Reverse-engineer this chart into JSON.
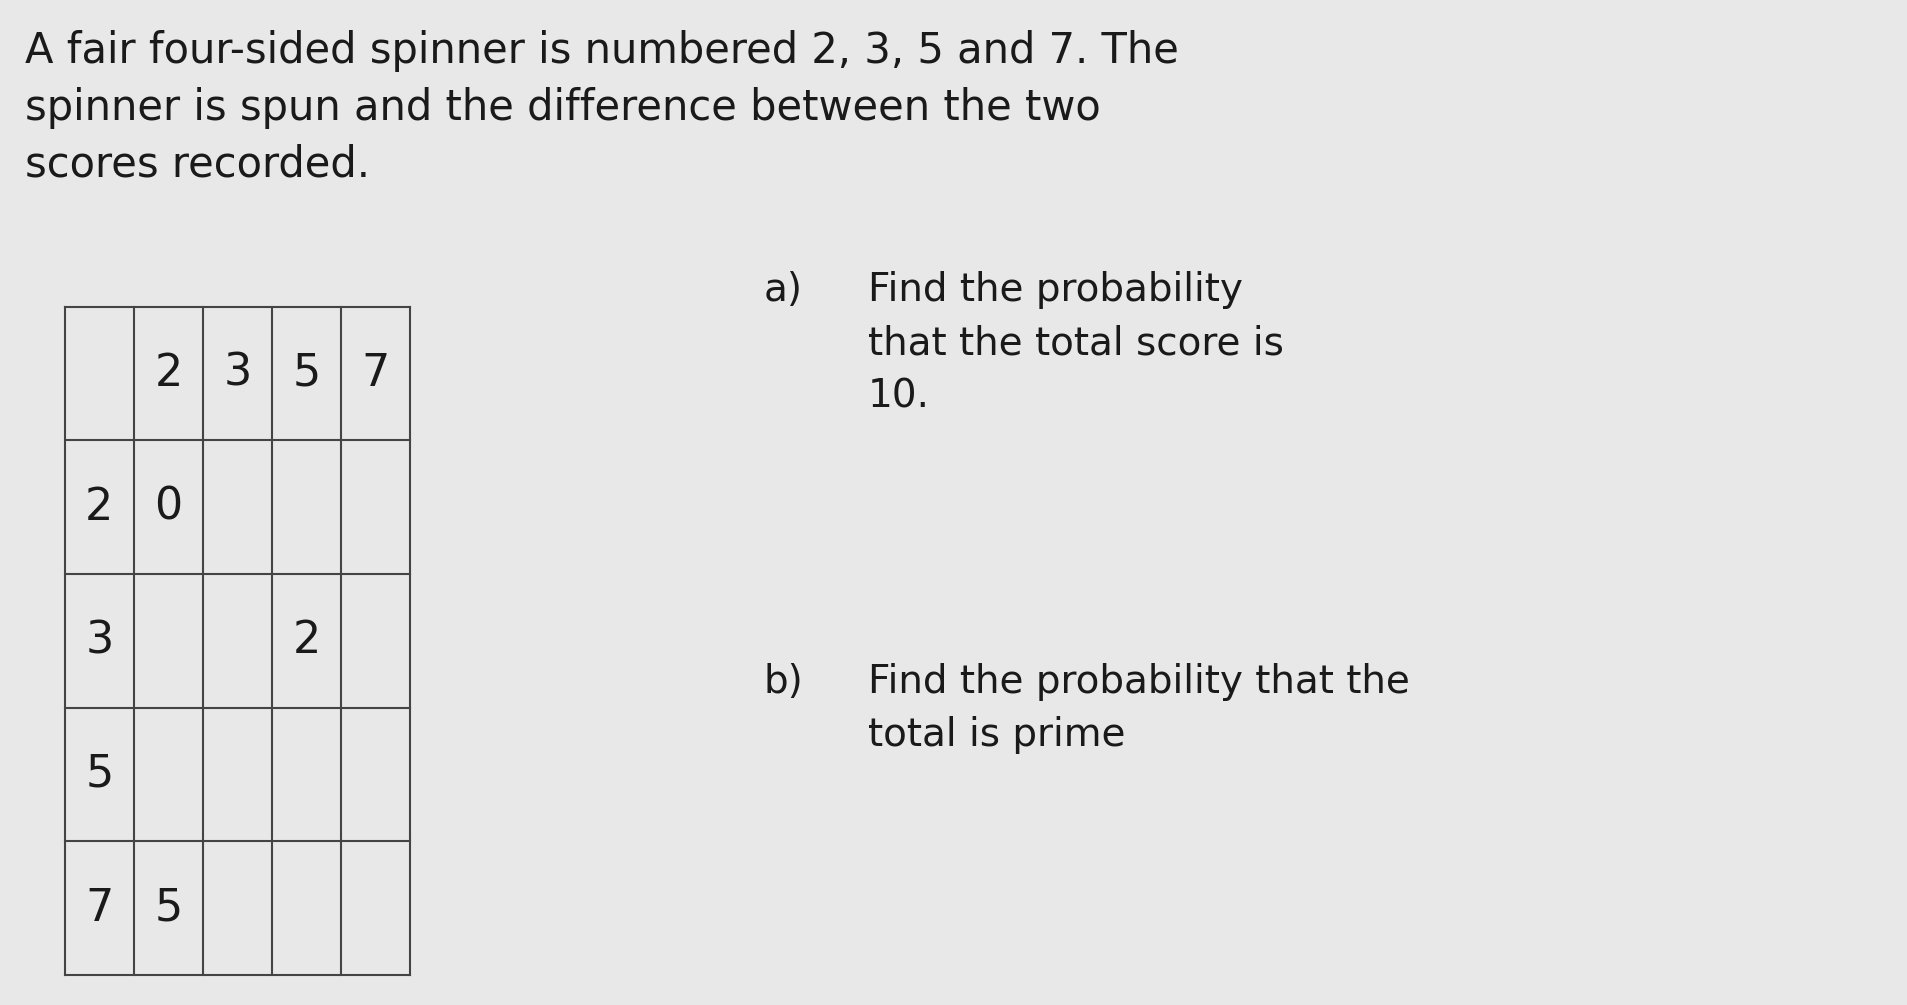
{
  "title_text": "A fair four-sided spinner is numbered 2, 3, 5 and 7. The\nspinner is spun and the difference between the two\nscores recorded.",
  "question_a_label": "a)",
  "question_a_text": "Find the probability\nthat the total score is\n10.",
  "question_b_label": "b)",
  "question_b_text": "Find the probability that the\ntotal is prime",
  "background_color": "#e8e8e8",
  "col_headers": [
    "2",
    "3",
    "5",
    "7"
  ],
  "row_headers": [
    "2",
    "3",
    "5",
    "7"
  ],
  "table_data": [
    [
      "0",
      "",
      "",
      ""
    ],
    [
      "",
      "",
      "2",
      ""
    ],
    [
      "",
      "",
      "",
      ""
    ],
    [
      "5",
      "",
      "",
      ""
    ]
  ],
  "title_fontsize": 30,
  "question_fontsize": 28,
  "table_fontsize": 32,
  "text_color": "#1a1a1a",
  "line_color": "#444444",
  "line_width": 1.5
}
